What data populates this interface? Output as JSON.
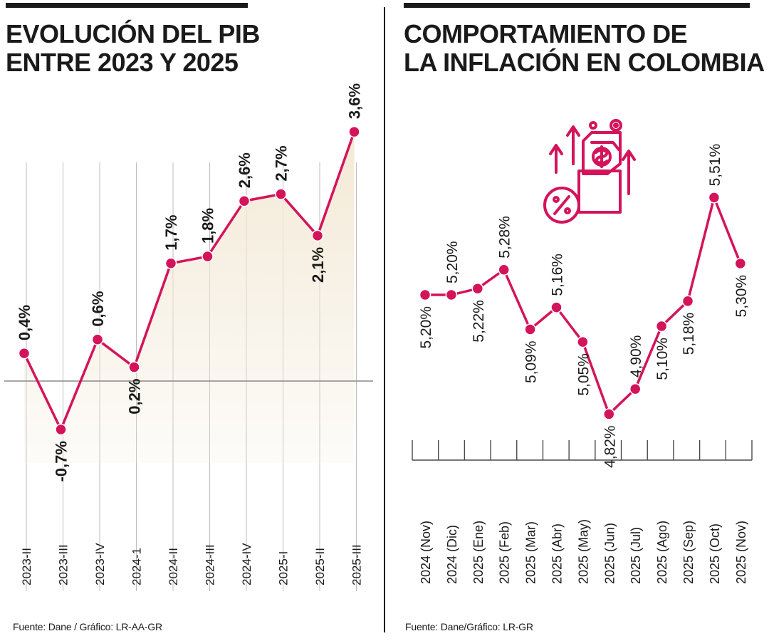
{
  "pib_panel": {
    "title_line1": "EVOLUCIÓN DEL PIB",
    "title_line2": "ENTRE 2023 Y 2025",
    "source": "Fuente: Dane / Gráfico: LR-AA-GR"
  },
  "inflacion_panel": {
    "title_line1": "COMPORTAMIENTO DE",
    "title_line2": "LA INFLACIÓN EN COLOMBIA",
    "source": "Fuente: Dane/Gráfico: LR-GR",
    "icon": "price-increase-icon"
  },
  "colors": {
    "line": "#d4145a",
    "area": "#f3e9d6",
    "grid": "#bdbdbd",
    "text": "#1a1a1a"
  },
  "chart_data": [
    {
      "type": "area",
      "title": "EVOLUCIÓN DEL PIB ENTRE 2023 Y 2025",
      "categories": [
        "2023-II",
        "2023-III",
        "2023-IV",
        "2024-1",
        "2024-II",
        "2024-III",
        "2024-IV",
        "2025-I",
        "2025-II",
        "2025-III"
      ],
      "values": [
        0.4,
        -0.7,
        0.6,
        0.2,
        1.7,
        1.8,
        2.6,
        2.7,
        2.1,
        3.6
      ],
      "labels": [
        "0,4%",
        "-0,7%",
        "0,6%",
        "0,2%",
        "1,7%",
        "1,8%",
        "2,6%",
        "2,7%",
        "2,1%",
        "3,6%"
      ],
      "ylim": [
        -1.0,
        3.6
      ],
      "grid": true,
      "xlabel": "",
      "ylabel": ""
    },
    {
      "type": "line",
      "title": "COMPORTAMIENTO DE LA INFLACIÓN EN COLOMBIA",
      "categories": [
        "2024 (Nov)",
        "2024 (Dic)",
        "2025 (Ene)",
        "2025 (Feb)",
        "2025 (Mar)",
        "2025 (Abr)",
        "2025 (May)",
        "2025 (Jun)",
        "2025 (Jul)",
        "2025 (Ago)",
        "2025 (Sep)",
        "2025 (Oct)",
        "2025 (Nov)"
      ],
      "values": [
        5.2,
        5.2,
        5.22,
        5.28,
        5.09,
        5.16,
        5.05,
        4.82,
        4.9,
        5.1,
        5.18,
        5.51,
        5.3
      ],
      "labels": [
        "5,20%",
        "5,20%",
        "5,22%",
        "5,28%",
        "5,09%",
        "5,16%",
        "5,05%",
        "4,82%",
        "4,90%",
        "5,10%",
        "5,18%",
        "5,51%",
        "5,30%"
      ],
      "ylim": [
        4.82,
        5.51
      ],
      "grid": false,
      "xlabel": "",
      "ylabel": ""
    }
  ]
}
